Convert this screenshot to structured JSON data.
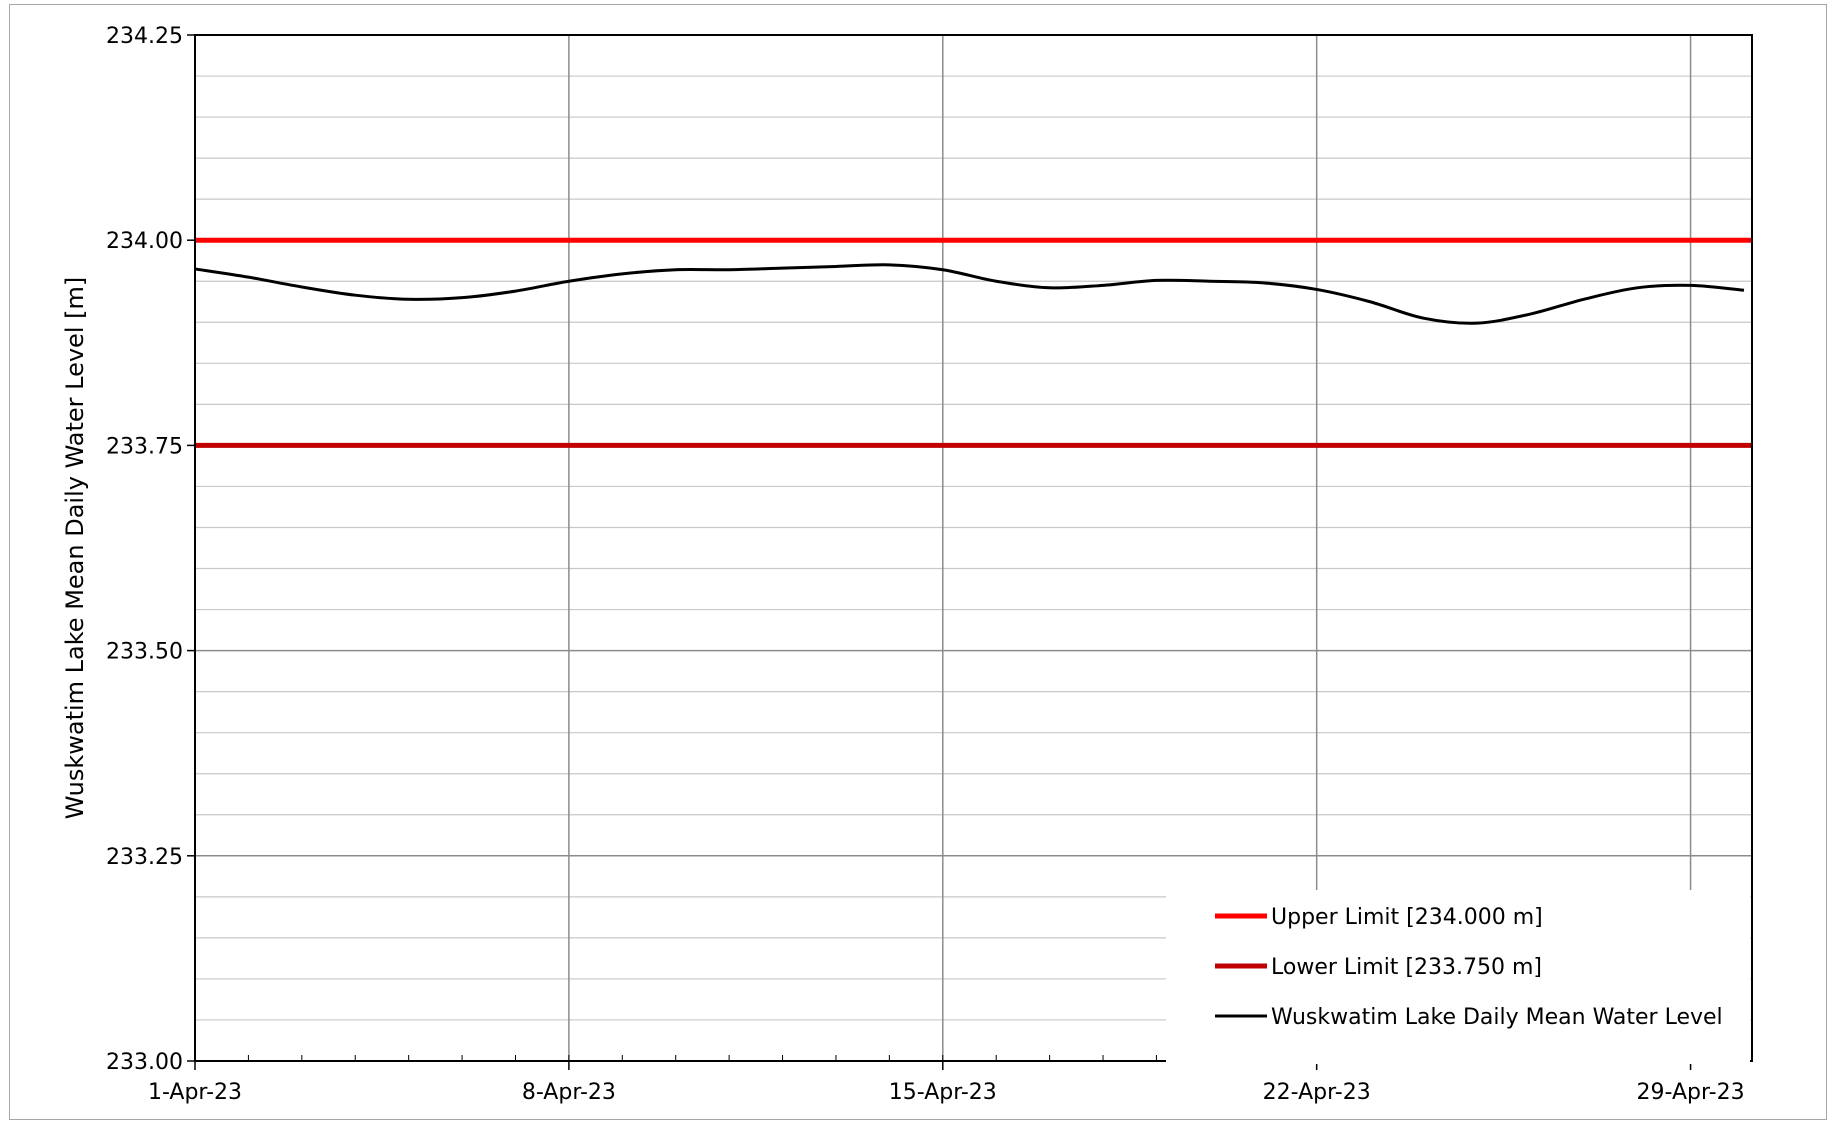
{
  "chart_data": {
    "type": "line",
    "title": "",
    "xlabel": "",
    "ylabel": "Wuskwatim Lake Mean Daily Water Level [m]",
    "ylim": [
      233.0,
      234.25
    ],
    "yticks": [
      "233.00",
      "233.25",
      "233.50",
      "233.75",
      "234.00",
      "234.25"
    ],
    "yminor_step": 0.05,
    "xlim": [
      "2023-04-01",
      "2023-04-30"
    ],
    "xticks": [
      {
        "date": "2023-04-01",
        "label": "1-Apr-23"
      },
      {
        "date": "2023-04-08",
        "label": "8-Apr-23"
      },
      {
        "date": "2023-04-15",
        "label": "15-Apr-23"
      },
      {
        "date": "2023-04-22",
        "label": "22-Apr-23"
      },
      {
        "date": "2023-04-29",
        "label": "29-Apr-23"
      }
    ],
    "grid": true,
    "legend_position": "bottom-right",
    "series": [
      {
        "name": "Upper Limit [234.000 m]",
        "color": "#ff0000",
        "kind": "constant",
        "x": [
          "2023-04-01",
          "2023-04-30"
        ],
        "y": [
          234.0,
          234.0
        ]
      },
      {
        "name": "Lower Limit [233.750 m]",
        "color": "#c00000",
        "kind": "constant",
        "x": [
          "2023-04-01",
          "2023-04-30"
        ],
        "y": [
          233.75,
          233.75
        ]
      },
      {
        "name": "Wuskwatim Lake Daily Mean Water Level",
        "color": "#000000",
        "kind": "daily",
        "x": [
          "2023-04-01",
          "2023-04-02",
          "2023-04-03",
          "2023-04-04",
          "2023-04-05",
          "2023-04-06",
          "2023-04-07",
          "2023-04-08",
          "2023-04-09",
          "2023-04-10",
          "2023-04-11",
          "2023-04-12",
          "2023-04-13",
          "2023-04-14",
          "2023-04-15",
          "2023-04-16",
          "2023-04-17",
          "2023-04-18",
          "2023-04-19",
          "2023-04-20",
          "2023-04-21",
          "2023-04-22",
          "2023-04-23",
          "2023-04-24",
          "2023-04-25",
          "2023-04-26",
          "2023-04-27",
          "2023-04-28",
          "2023-04-29",
          "2023-04-30"
        ],
        "y": [
          233.965,
          233.955,
          233.943,
          233.933,
          233.928,
          233.93,
          233.938,
          233.95,
          233.959,
          233.964,
          233.964,
          233.966,
          233.968,
          233.97,
          233.964,
          233.95,
          233.942,
          233.945,
          233.951,
          233.95,
          233.948,
          233.94,
          233.925,
          233.905,
          233.899,
          233.91,
          233.928,
          233.942,
          233.945,
          233.939
        ]
      }
    ]
  }
}
